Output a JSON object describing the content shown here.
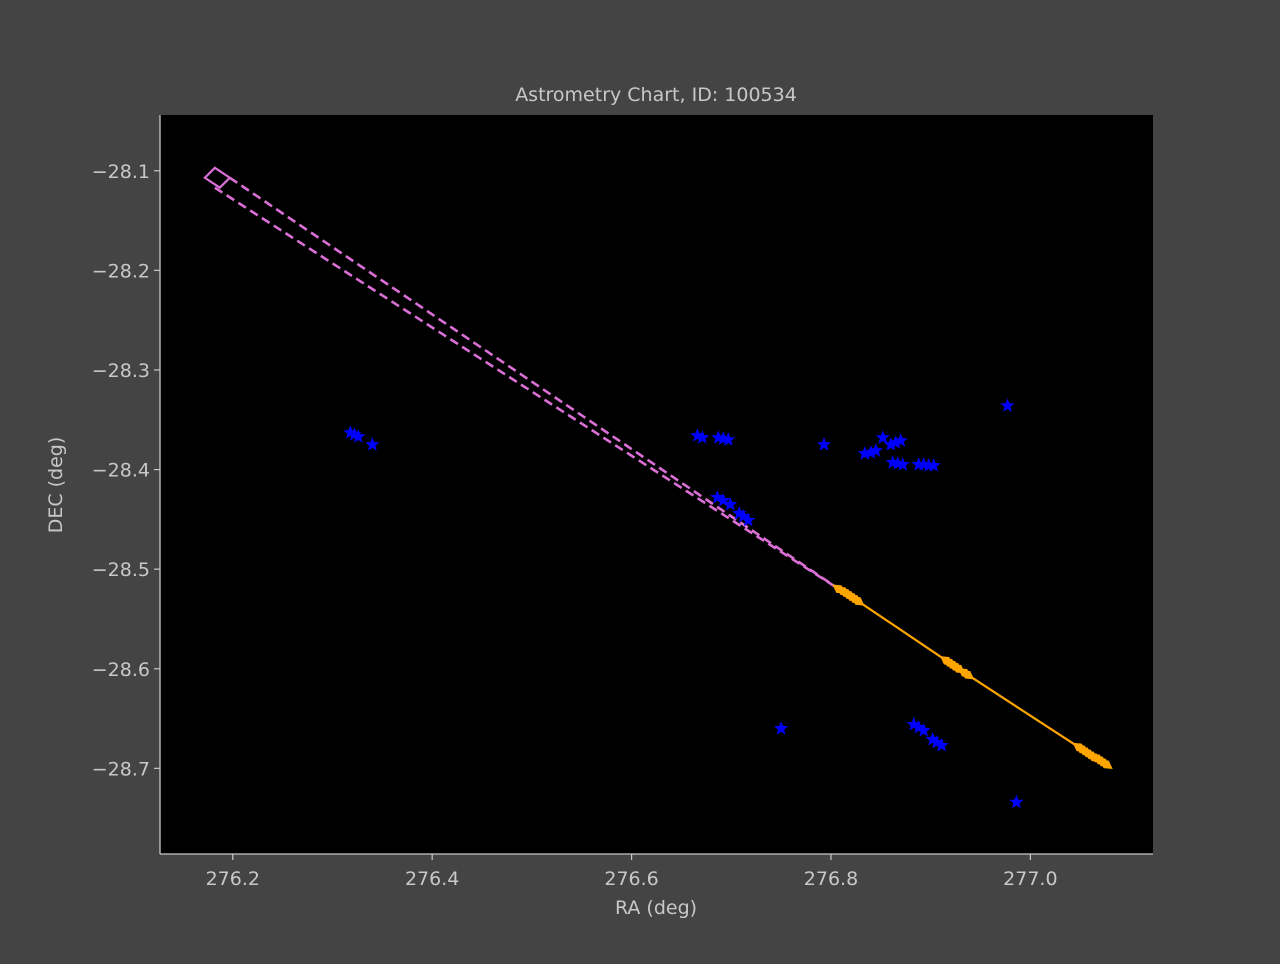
{
  "chart_data": {
    "type": "scatter",
    "title": "Astrometry Chart, ID: 100534",
    "xlabel": "RA (deg)",
    "ylabel": "DEC (deg)",
    "xlim": [
      276.127,
      277.123
    ],
    "ylim": [
      -28.786,
      -28.044
    ],
    "xticks": [
      276.2,
      276.4,
      276.6,
      276.8,
      277.0
    ],
    "xtick_labels": [
      "276.2",
      "276.4",
      "276.6",
      "276.8",
      "277.0"
    ],
    "yticks": [
      -28.1,
      -28.2,
      -28.3,
      -28.4,
      -28.5,
      -28.6,
      -28.7
    ],
    "ytick_labels": [
      "−28.1",
      "−28.2",
      "−28.3",
      "−28.4",
      "−28.5",
      "−28.6",
      "−28.7"
    ],
    "grid": false,
    "colors": {
      "figure_bg": "#444444",
      "axes_bg": "#000000",
      "axis": "#c8c8c8",
      "stars": "#0000ff",
      "track": "#ffa500",
      "uncertainty": "#da70d6"
    },
    "series": [
      {
        "marker": "star",
        "color": "#0000ff",
        "x": [
          276.318,
          276.322,
          276.326,
          276.34,
          276.666,
          276.671,
          276.687,
          276.692,
          276.697,
          276.686,
          276.692,
          276.699,
          276.708,
          276.712,
          276.717,
          276.75,
          276.793,
          276.852,
          276.834,
          276.84,
          276.845,
          276.86,
          276.865,
          276.87,
          276.862,
          276.867,
          276.872,
          276.888,
          276.893,
          276.898,
          276.903,
          276.883,
          276.888,
          276.893,
          276.902,
          276.906,
          276.911,
          276.977,
          276.986
        ],
        "y": [
          -28.363,
          -28.365,
          -28.367,
          -28.375,
          -28.366,
          -28.368,
          -28.368,
          -28.369,
          -28.37,
          -28.428,
          -28.431,
          -28.435,
          -28.444,
          -28.447,
          -28.451,
          -28.66,
          -28.375,
          -28.368,
          -28.384,
          -28.383,
          -28.381,
          -28.375,
          -28.373,
          -28.371,
          -28.393,
          -28.394,
          -28.395,
          -28.395,
          -28.395,
          -28.396,
          -28.396,
          -28.656,
          -28.659,
          -28.662,
          -28.671,
          -28.674,
          -28.677,
          -28.336,
          -28.734
        ]
      },
      {
        "marker": "thin_diamond",
        "color": "#ffa500",
        "line": "solid",
        "x": [
          276.808,
          276.812,
          276.815,
          276.818,
          276.821,
          276.824,
          276.827,
          276.916,
          276.919,
          276.922,
          276.925,
          276.928,
          276.934,
          276.937,
          277.049,
          277.052,
          277.055,
          277.058,
          277.061,
          277.064,
          277.067,
          277.07,
          277.073,
          277.076
        ],
        "y": [
          -28.52,
          -28.522,
          -28.524,
          -28.526,
          -28.528,
          -28.53,
          -28.532,
          -28.592,
          -28.594,
          -28.596,
          -28.598,
          -28.6,
          -28.604,
          -28.606,
          -28.679,
          -28.681,
          -28.683,
          -28.685,
          -28.687,
          -28.689,
          -28.69,
          -28.692,
          -28.694,
          -28.696
        ]
      },
      {
        "marker": "none",
        "color": "#da70d6",
        "line": "dashed",
        "x": [
          276.187,
          276.808
        ],
        "y": [
          -28.097,
          -28.52
        ],
        "box": {
          "center": [
            276.187,
            -28.107
          ],
          "x": [
            276.172,
            276.182,
            276.197,
            276.187
          ],
          "y": [
            -28.107,
            -28.097,
            -28.107,
            -28.117
          ]
        },
        "dashed_edges": [
          {
            "x": [
              276.197,
              276.808
            ],
            "y": [
              -28.107,
              -28.52
            ]
          },
          {
            "x": [
              276.182,
              276.808
            ],
            "y": [
              -28.117,
              -28.52
            ]
          }
        ]
      }
    ]
  }
}
